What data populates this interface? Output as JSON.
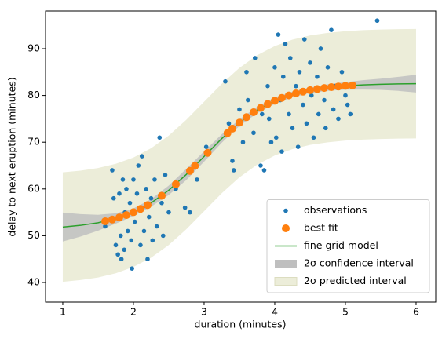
{
  "chart_data": {
    "type": "scatter",
    "xlabel": "duration (minutes)",
    "ylabel": "delay to next eruption (minutes)",
    "xlim": [
      0.756,
      6.278
    ],
    "ylim": [
      35.81,
      98.05
    ],
    "xticks": [
      1,
      2,
      3,
      4,
      5,
      6
    ],
    "yticks": [
      40,
      50,
      60,
      70,
      80,
      90
    ],
    "legend": "lower right",
    "series": [
      {
        "name": "observations",
        "color": "#1f77b4",
        "type": "scatter",
        "x": [
          1.6,
          1.7,
          1.72,
          1.75,
          1.78,
          1.8,
          1.8,
          1.82,
          1.83,
          1.85,
          1.87,
          1.88,
          1.9,
          1.92,
          1.95,
          1.97,
          1.98,
          2.0,
          2.02,
          2.05,
          2.07,
          2.1,
          2.12,
          2.13,
          2.15,
          2.18,
          2.2,
          2.22,
          2.25,
          2.27,
          2.3,
          2.33,
          2.37,
          2.4,
          2.42,
          2.45,
          2.5,
          2.6,
          2.73,
          2.8,
          2.9,
          3.03,
          3.3,
          3.35,
          3.4,
          3.42,
          3.5,
          3.55,
          3.6,
          3.62,
          3.7,
          3.72,
          3.8,
          3.82,
          3.85,
          3.9,
          3.92,
          3.95,
          4.0,
          4.02,
          4.05,
          4.08,
          4.1,
          4.12,
          4.15,
          4.2,
          4.22,
          4.25,
          4.3,
          4.33,
          4.35,
          4.4,
          4.42,
          4.45,
          4.5,
          4.52,
          4.55,
          4.6,
          4.62,
          4.65,
          4.7,
          4.72,
          4.75,
          4.8,
          4.83,
          4.85,
          4.9,
          4.95,
          5.0,
          5.03,
          5.07,
          5.1,
          5.45
        ],
        "values": [
          52,
          64,
          58,
          48,
          46,
          59,
          54,
          50,
          45,
          62,
          47,
          55,
          60,
          51,
          57,
          49,
          43,
          62,
          53,
          59,
          65,
          48,
          67,
          56,
          51,
          60,
          45,
          54,
          58,
          49,
          62,
          52,
          71,
          57,
          50,
          63,
          55,
          60,
          56,
          55,
          62,
          69,
          83,
          74,
          66,
          64,
          77,
          70,
          85,
          79,
          72,
          88,
          65,
          76,
          64,
          82,
          75,
          70,
          86,
          71,
          93,
          79,
          68,
          84,
          91,
          76,
          88,
          73,
          82,
          69,
          85,
          78,
          92,
          74,
          87,
          80,
          71,
          84,
          76,
          90,
          79,
          73,
          86,
          94,
          77,
          82,
          75,
          85,
          80,
          78,
          76,
          82,
          96
        ]
      },
      {
        "name": "best fit",
        "color": "#ff7f0e",
        "type": "scatter",
        "x": [
          1.6,
          1.7,
          1.8,
          1.9,
          2.0,
          2.1,
          2.2,
          2.4,
          2.6,
          2.8,
          2.87,
          3.05,
          3.33,
          3.4,
          3.5,
          3.6,
          3.7,
          3.8,
          3.9,
          4.0,
          4.1,
          4.2,
          4.3,
          4.4,
          4.5,
          4.6,
          4.7,
          4.8,
          4.9,
          5.0,
          5.1
        ],
        "values": [
          53.09,
          53.46,
          53.9,
          54.42,
          55.03,
          55.74,
          56.56,
          58.55,
          61.0,
          63.86,
          64.93,
          67.73,
          71.93,
          72.9,
          74.18,
          75.35,
          76.41,
          77.34,
          78.16,
          78.87,
          79.48,
          80.0,
          80.44,
          80.81,
          81.12,
          81.37,
          81.59,
          81.77,
          81.91,
          82.04,
          82.14
        ]
      },
      {
        "name": "fine grid model",
        "color": "#2ca02c",
        "type": "line",
        "x": [
          1,
          1.25,
          1.5,
          1.75,
          2,
          2.25,
          2.5,
          2.75,
          3,
          3.25,
          3.5,
          3.75,
          4,
          4.25,
          4.5,
          4.75,
          5,
          5.25,
          5.5,
          5.75,
          6
        ],
        "values": [
          51.86,
          52.22,
          52.78,
          53.68,
          55.03,
          57.01,
          59.72,
          63.12,
          66.95,
          70.78,
          74.18,
          76.89,
          78.87,
          80.22,
          81.12,
          81.68,
          82.04,
          82.26,
          82.39,
          82.47,
          82.52
        ]
      },
      {
        "name": "2σ confidence interval",
        "color": "#bfbfbf",
        "type": "band",
        "x": [
          1,
          1.25,
          1.5,
          1.75,
          2,
          2.25,
          2.5,
          2.75,
          3,
          3.25,
          3.5,
          3.75,
          4,
          4.25,
          4.5,
          4.75,
          5,
          5.25,
          5.5,
          5.75,
          6
        ],
        "lower": [
          48.76,
          49.82,
          51.08,
          52.58,
          54.23,
          56.21,
          58.72,
          61.92,
          65.85,
          69.88,
          73.48,
          76.19,
          78.17,
          79.62,
          80.52,
          80.98,
          81.24,
          81.26,
          81.19,
          80.97,
          80.62
        ],
        "upper": [
          54.96,
          54.62,
          54.48,
          54.78,
          55.83,
          57.81,
          60.72,
          64.32,
          68.05,
          71.68,
          74.88,
          77.59,
          79.57,
          80.82,
          81.72,
          82.38,
          82.84,
          83.26,
          83.59,
          83.97,
          84.42
        ]
      },
      {
        "name": "2σ predicted interval",
        "color": "#ecedd9",
        "type": "band",
        "x": [
          1,
          1.25,
          1.5,
          1.75,
          2,
          2.25,
          2.5,
          2.75,
          3,
          3.25,
          3.5,
          3.75,
          4,
          4.25,
          4.5,
          4.75,
          5,
          5.25,
          5.5,
          5.75,
          6
        ],
        "lower": [
          40.16,
          40.52,
          41.08,
          41.98,
          43.33,
          45.31,
          48.02,
          51.42,
          55.25,
          59.08,
          62.48,
          65.19,
          67.17,
          68.52,
          69.42,
          69.98,
          70.34,
          70.56,
          70.69,
          70.77,
          70.82
        ],
        "upper": [
          63.56,
          63.92,
          64.48,
          65.38,
          66.73,
          68.71,
          71.42,
          74.82,
          78.65,
          82.48,
          85.88,
          88.59,
          90.57,
          91.92,
          92.82,
          93.38,
          93.74,
          93.96,
          94.09,
          94.17,
          94.22
        ]
      }
    ]
  }
}
